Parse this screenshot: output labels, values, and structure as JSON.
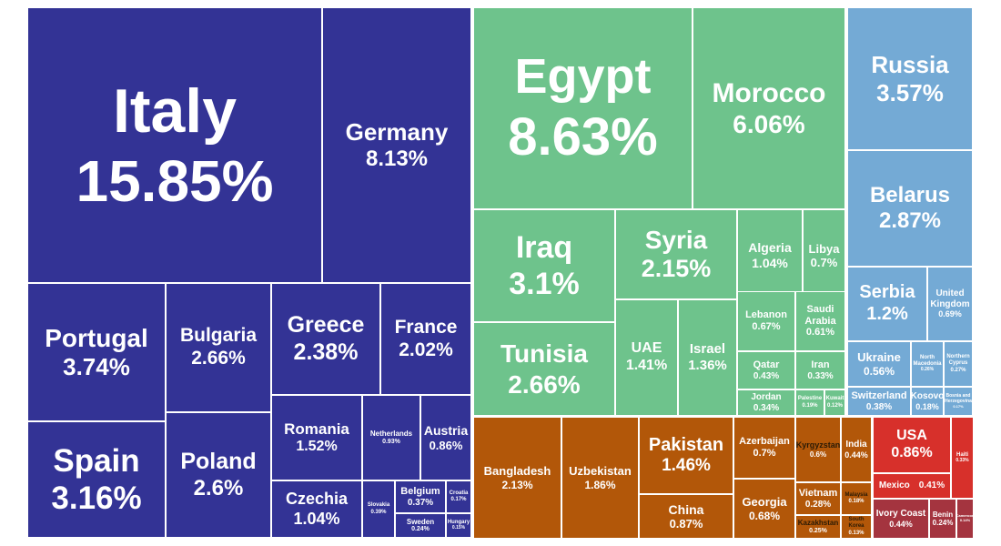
{
  "chart_data": {
    "type": "treemap",
    "title": "",
    "colors": {
      "Europe": "#333395",
      "Middle East & North Africa": "#6ec38c",
      "Post-Soviet / Eastern Europe": "#74aad5",
      "Asia": "#b25709",
      "Americas": "#d7302b",
      "Sub-Saharan Africa": "#a4343f"
    },
    "tiles": [
      {
        "label": "Italy",
        "value": 15.85,
        "text": "15.85%",
        "group": "Europe"
      },
      {
        "label": "Germany",
        "value": 8.13,
        "text": "8.13%",
        "group": "Europe"
      },
      {
        "label": "Portugal",
        "value": 3.74,
        "text": "3.74%",
        "group": "Europe"
      },
      {
        "label": "Bulgaria",
        "value": 2.66,
        "text": "2.66%",
        "group": "Europe"
      },
      {
        "label": "Greece",
        "value": 2.38,
        "text": "2.38%",
        "group": "Europe"
      },
      {
        "label": "France",
        "value": 2.02,
        "text": "2.02%",
        "group": "Europe"
      },
      {
        "label": "Spain",
        "value": 3.16,
        "text": "3.16%",
        "group": "Europe"
      },
      {
        "label": "Poland",
        "value": 2.6,
        "text": "2.6%",
        "group": "Europe"
      },
      {
        "label": "Romania",
        "value": 1.52,
        "text": "1.52%",
        "group": "Europe"
      },
      {
        "label": "Netherlands",
        "value": 0.93,
        "text": "0.93%",
        "group": "Europe"
      },
      {
        "label": "Austria",
        "value": 0.86,
        "text": "0.86%",
        "group": "Europe"
      },
      {
        "label": "Czechia",
        "value": 1.04,
        "text": "1.04%",
        "group": "Europe"
      },
      {
        "label": "Slovakia",
        "value": 0.39,
        "text": "0.39%",
        "group": "Europe"
      },
      {
        "label": "Belgium",
        "value": 0.37,
        "text": "0.37%",
        "group": "Europe"
      },
      {
        "label": "Croatia",
        "value": 0.17,
        "text": "0.17%",
        "group": "Europe"
      },
      {
        "label": "Sweden",
        "value": 0.24,
        "text": "0.24%",
        "group": "Europe"
      },
      {
        "label": "Hungary",
        "value": 0.15,
        "text": "0.15%",
        "group": "Europe"
      },
      {
        "label": "Egypt",
        "value": 8.63,
        "text": "8.63%",
        "group": "Middle East & North Africa"
      },
      {
        "label": "Morocco",
        "value": 6.06,
        "text": "6.06%",
        "group": "Middle East & North Africa"
      },
      {
        "label": "Iraq",
        "value": 3.1,
        "text": "3.1%",
        "group": "Middle East & North Africa"
      },
      {
        "label": "Syria",
        "value": 2.15,
        "text": "2.15%",
        "group": "Middle East & North Africa"
      },
      {
        "label": "Algeria",
        "value": 1.04,
        "text": "1.04%",
        "group": "Middle East & North Africa"
      },
      {
        "label": "Libya",
        "value": 0.7,
        "text": "0.7%",
        "group": "Middle East & North Africa"
      },
      {
        "label": "Tunisia",
        "value": 2.66,
        "text": "2.66%",
        "group": "Middle East & North Africa"
      },
      {
        "label": "UAE",
        "value": 1.41,
        "text": "1.41%",
        "group": "Middle East & North Africa"
      },
      {
        "label": "Israel",
        "value": 1.36,
        "text": "1.36%",
        "group": "Middle East & North Africa"
      },
      {
        "label": "Lebanon",
        "value": 0.67,
        "text": "0.67%",
        "group": "Middle East & North Africa"
      },
      {
        "label": "Saudi Arabia",
        "value": 0.61,
        "text": "0.61%",
        "group": "Middle East & North Africa"
      },
      {
        "label": "Qatar",
        "value": 0.43,
        "text": "0.43%",
        "group": "Middle East & North Africa"
      },
      {
        "label": "Iran",
        "value": 0.33,
        "text": "0.33%",
        "group": "Middle East & North Africa"
      },
      {
        "label": "Jordan",
        "value": 0.34,
        "text": "0.34%",
        "group": "Middle East & North Africa"
      },
      {
        "label": "Palestine",
        "value": 0.19,
        "text": "0.19%",
        "group": "Middle East & North Africa"
      },
      {
        "label": "Kuwait",
        "value": 0.12,
        "text": "0.12%",
        "group": "Middle East & North Africa"
      },
      {
        "label": "Russia",
        "value": 3.57,
        "text": "3.57%",
        "group": "Post-Soviet / Eastern Europe"
      },
      {
        "label": "Belarus",
        "value": 2.87,
        "text": "2.87%",
        "group": "Post-Soviet / Eastern Europe"
      },
      {
        "label": "Serbia",
        "value": 1.2,
        "text": "1.2%",
        "group": "Post-Soviet / Eastern Europe"
      },
      {
        "label": "United Kingdom",
        "value": 0.69,
        "text": "0.69%",
        "group": "Post-Soviet / Eastern Europe"
      },
      {
        "label": "Ukraine",
        "value": 0.56,
        "text": "0.56%",
        "group": "Post-Soviet / Eastern Europe"
      },
      {
        "label": "North Macedonia",
        "value": 0.26,
        "text": "0.26%",
        "group": "Post-Soviet / Eastern Europe"
      },
      {
        "label": "Northern Cyprus",
        "value": 0.27,
        "text": "0.27%",
        "group": "Post-Soviet / Eastern Europe"
      },
      {
        "label": "Switzerland",
        "value": 0.38,
        "text": "0.38%",
        "group": "Post-Soviet / Eastern Europe"
      },
      {
        "label": "Kosovo",
        "value": 0.18,
        "text": "0.18%",
        "group": "Post-Soviet / Eastern Europe"
      },
      {
        "label": "Bosnia and Herzegovina",
        "value": 0.17,
        "text": "0.17%",
        "group": "Post-Soviet / Eastern Europe"
      },
      {
        "label": "Bangladesh",
        "value": 2.13,
        "text": "2.13%",
        "group": "Asia"
      },
      {
        "label": "Uzbekistan",
        "value": 1.86,
        "text": "1.86%",
        "group": "Asia"
      },
      {
        "label": "Pakistan",
        "value": 1.46,
        "text": "1.46%",
        "group": "Asia"
      },
      {
        "label": "China",
        "value": 0.87,
        "text": "0.87%",
        "group": "Asia"
      },
      {
        "label": "Azerbaijan",
        "value": 0.7,
        "text": "0.7%",
        "group": "Asia"
      },
      {
        "label": "Kyrgyzstan",
        "value": 0.6,
        "text": "0.6%",
        "group": "Asia"
      },
      {
        "label": "India",
        "value": 0.44,
        "text": "0.44%",
        "group": "Asia"
      },
      {
        "label": "Georgia",
        "value": 0.68,
        "text": "0.68%",
        "group": "Asia"
      },
      {
        "label": "Vietnam",
        "value": 0.28,
        "text": "0.28%",
        "group": "Asia"
      },
      {
        "label": "Malaysia",
        "value": 0.18,
        "text": "0.18%",
        "group": "Asia"
      },
      {
        "label": "Kazakhstan",
        "value": 0.25,
        "text": "0.25%",
        "group": "Asia"
      },
      {
        "label": "South Korea",
        "value": 0.13,
        "text": "0.13%",
        "group": "Asia"
      },
      {
        "label": "USA",
        "value": 0.86,
        "text": "0.86%",
        "group": "Americas"
      },
      {
        "label": "Mexico",
        "value": 0.41,
        "text": "0.41%",
        "group": "Americas"
      },
      {
        "label": "Haiti",
        "value": 0.33,
        "text": "0.33%",
        "group": "Americas"
      },
      {
        "label": "Ivory Coast",
        "value": 0.44,
        "text": "0.44%",
        "group": "Sub-Saharan Africa"
      },
      {
        "label": "Benin",
        "value": 0.24,
        "text": "0.24%",
        "group": "Sub-Saharan Africa"
      },
      {
        "label": "Cameroon",
        "value": 0.14,
        "text": "0.14%",
        "group": "Sub-Saharan Africa"
      }
    ]
  }
}
